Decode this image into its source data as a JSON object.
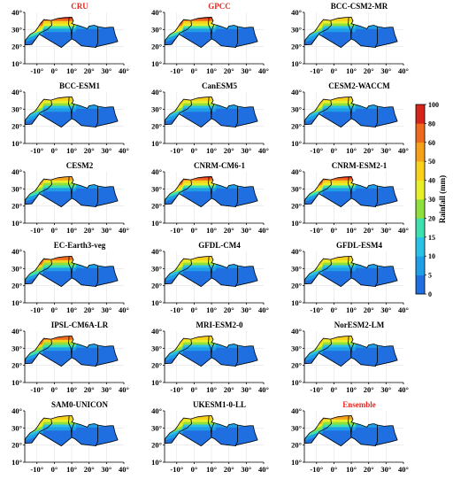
{
  "chart_data": {
    "type": "heatmap",
    "panels": [
      {
        "title": "CRU",
        "title_color": "#e8251f",
        "coast_max": 100,
        "intensity": 1.0
      },
      {
        "title": "GPCC",
        "title_color": "#e8251f",
        "coast_max": 80,
        "intensity": 0.9
      },
      {
        "title": "BCC-CSM2-MR",
        "title_color": "#000000",
        "coast_max": 40,
        "intensity": 0.55
      },
      {
        "title": "BCC-ESM1",
        "title_color": "#000000",
        "coast_max": 40,
        "intensity": 0.5
      },
      {
        "title": "CanESM5",
        "title_color": "#000000",
        "coast_max": 40,
        "intensity": 0.55
      },
      {
        "title": "CESM2-WACCM",
        "title_color": "#000000",
        "coast_max": 40,
        "intensity": 0.5
      },
      {
        "title": "CESM2",
        "title_color": "#000000",
        "coast_max": 50,
        "intensity": 0.7
      },
      {
        "title": "CNRM-CM6-1",
        "title_color": "#000000",
        "coast_max": 100,
        "intensity": 1.0
      },
      {
        "title": "CNRM-ESM2-1",
        "title_color": "#000000",
        "coast_max": 100,
        "intensity": 0.95
      },
      {
        "title": "EC-Earth3-veg",
        "title_color": "#000000",
        "coast_max": 60,
        "intensity": 0.75
      },
      {
        "title": "GFDL-CM4",
        "title_color": "#000000",
        "coast_max": 40,
        "intensity": 0.55
      },
      {
        "title": "GFDL-ESM4",
        "title_color": "#000000",
        "coast_max": 40,
        "intensity": 0.55
      },
      {
        "title": "IPSL-CM6A-LR",
        "title_color": "#000000",
        "coast_max": 60,
        "intensity": 0.8
      },
      {
        "title": "MRI-ESM2-0",
        "title_color": "#000000",
        "coast_max": 40,
        "intensity": 0.55
      },
      {
        "title": "NorESM2-LM",
        "title_color": "#000000",
        "coast_max": 40,
        "intensity": 0.5
      },
      {
        "title": "SAM0-UNICON",
        "title_color": "#000000",
        "coast_max": 40,
        "intensity": 0.5
      },
      {
        "title": "UKESM1-0-LL",
        "title_color": "#000000",
        "coast_max": 40,
        "intensity": 0.55
      },
      {
        "title": "Ensemble",
        "title_color": "#e8251f",
        "coast_max": 50,
        "intensity": 0.65
      }
    ],
    "x_ticks": [
      "-10°",
      "0°",
      "10°",
      "20°",
      "30°",
      "40°"
    ],
    "y_ticks": [
      "40°",
      "30°",
      "20°",
      "10°"
    ],
    "xlim": [
      -17,
      40
    ],
    "ylim": [
      10,
      40
    ],
    "colorbar": {
      "label": "Rainfall (mm)",
      "levels": [
        0,
        5,
        10,
        15,
        20,
        30,
        40,
        50,
        60,
        80,
        100
      ],
      "colors": [
        "#1f6fe0",
        "#1e9ee6",
        "#2bc0e6",
        "#3fe0b0",
        "#8fe03c",
        "#e6ef2a",
        "#f7d11a",
        "#f5a11c",
        "#ee6a1c",
        "#d6251a"
      ]
    },
    "grid": true
  }
}
